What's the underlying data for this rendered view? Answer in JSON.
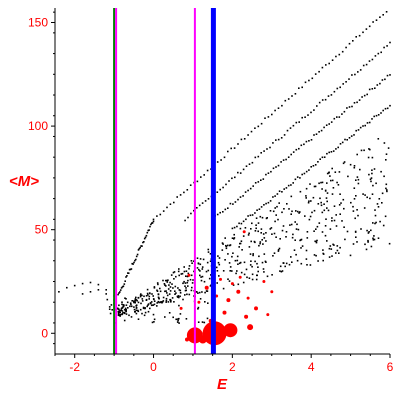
{
  "chart_data": {
    "type": "scatter",
    "xlabel": "E",
    "ylabel": "<M>",
    "xlim": [
      -2.5,
      6
    ],
    "ylim": [
      -10,
      157
    ],
    "x_ticks": [
      -2,
      0,
      2,
      4,
      6
    ],
    "y_ticks": [
      0,
      50,
      100,
      150
    ],
    "x_tick_labels": [
      "-2",
      "0",
      "2",
      "4",
      "6"
    ],
    "y_tick_labels": [
      "0",
      "50",
      "100",
      "150"
    ],
    "grid": false,
    "colors": {
      "axis_text": "#ff0000",
      "black_points": "#000000",
      "red_points": "#ff0000",
      "green_line": "#008000",
      "magenta_line": "#ff00ff",
      "blue_line": "#0000ff"
    },
    "vertical_lines": [
      {
        "x": -1.0,
        "color": "#008000",
        "width": 2
      },
      {
        "x": -0.95,
        "color": "#ff00ff",
        "width": 2
      },
      {
        "x": 1.05,
        "color": "#ff00ff",
        "width": 2
      },
      {
        "x": 1.52,
        "color": "#0000ff",
        "width": 5
      }
    ],
    "upper_lines": [
      {
        "x0": 0.0,
        "y0": 55,
        "x1": 6.0,
        "y1": 157
      },
      {
        "x0": 0.8,
        "y0": 55,
        "x1": 6.0,
        "y1": 140
      },
      {
        "x0": 1.5,
        "y0": 55,
        "x1": 6.0,
        "y1": 125
      },
      {
        "x0": 2.0,
        "y0": 50,
        "x1": 6.0,
        "y1": 110
      }
    ],
    "left_arc": [
      [
        -2.4,
        20
      ],
      [
        -2.2,
        22
      ],
      [
        -2.0,
        23
      ],
      [
        -1.8,
        24
      ],
      [
        -1.6,
        24.5
      ],
      [
        -1.4,
        23.5
      ],
      [
        -1.2,
        21
      ],
      [
        -1.0,
        18
      ],
      [
        -0.8,
        15
      ],
      [
        -0.6,
        13
      ],
      [
        -0.4,
        11
      ],
      [
        -0.2,
        10
      ],
      [
        0.0,
        9
      ],
      [
        -1.8,
        19
      ],
      [
        -1.6,
        20
      ],
      [
        -1.4,
        21
      ],
      [
        -1.2,
        19
      ],
      [
        -1.0,
        16
      ],
      [
        -0.8,
        14
      ]
    ],
    "red_points": [
      {
        "x": 1.05,
        "y": -1,
        "r": 8
      },
      {
        "x": 1.55,
        "y": 0,
        "r": 12
      },
      {
        "x": 1.95,
        "y": 1.5,
        "r": 7
      },
      {
        "x": 1.25,
        "y": -3,
        "r": 4
      },
      {
        "x": 0.85,
        "y": -3,
        "r": 2
      },
      {
        "x": 2.45,
        "y": 3,
        "r": 3
      },
      {
        "x": 2.35,
        "y": 8,
        "r": 2
      },
      {
        "x": 1.8,
        "y": 10,
        "r": 2
      },
      {
        "x": 2.6,
        "y": 12,
        "r": 2
      },
      {
        "x": 1.9,
        "y": 16,
        "r": 2
      },
      {
        "x": 2.15,
        "y": 20,
        "r": 2
      },
      {
        "x": 1.35,
        "y": 22,
        "r": 2
      },
      {
        "x": 1.6,
        "y": 18,
        "r": 1.5
      },
      {
        "x": 2.0,
        "y": 24,
        "r": 1.5
      },
      {
        "x": 2.2,
        "y": 27,
        "r": 1.5
      },
      {
        "x": 2.8,
        "y": 25,
        "r": 1.5
      },
      {
        "x": 0.9,
        "y": 28,
        "r": 1.5
      },
      {
        "x": 1.15,
        "y": 15,
        "r": 1.5
      },
      {
        "x": 2.4,
        "y": 17,
        "r": 1.5
      },
      {
        "x": 1.7,
        "y": 26,
        "r": 1.5
      },
      {
        "x": 2.3,
        "y": 49,
        "r": 1.5
      },
      {
        "x": 0.7,
        "y": 12,
        "r": 1.5
      },
      {
        "x": 3.0,
        "y": 20,
        "r": 1.5
      },
      {
        "x": 2.9,
        "y": 9,
        "r": 1.5
      },
      {
        "x": 1.45,
        "y": 6,
        "r": 2
      }
    ]
  }
}
